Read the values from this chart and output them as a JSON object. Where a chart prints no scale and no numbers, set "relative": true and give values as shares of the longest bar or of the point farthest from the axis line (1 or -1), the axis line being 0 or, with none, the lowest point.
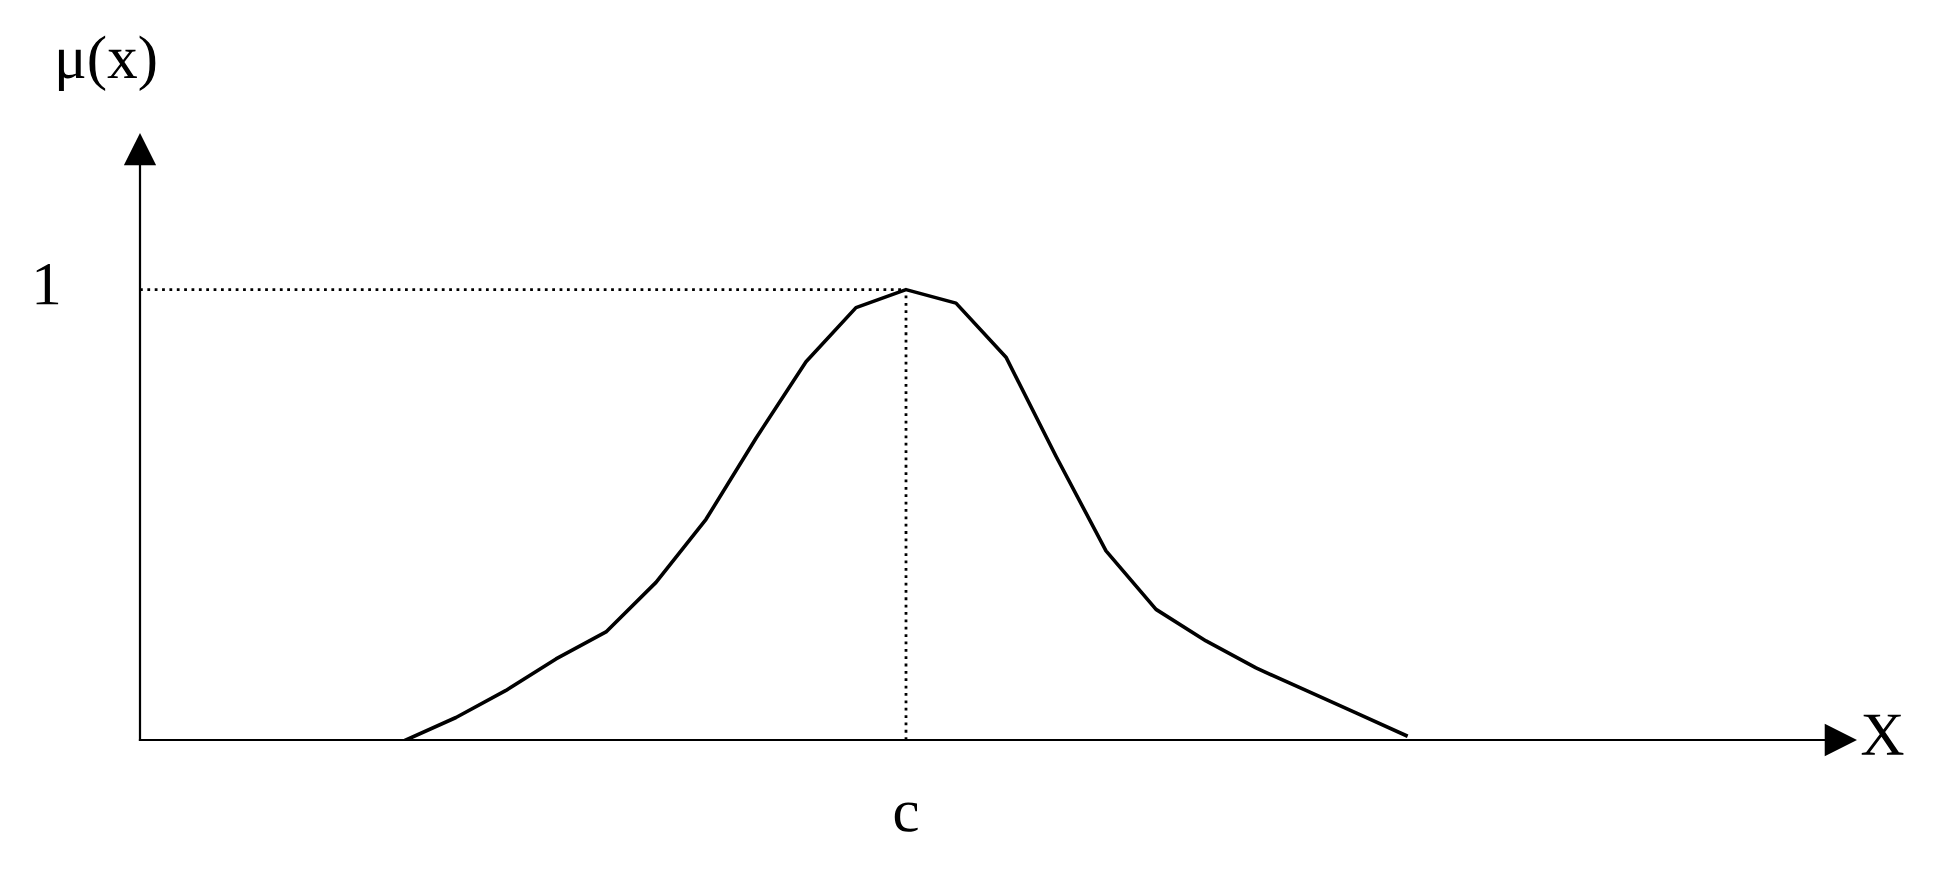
{
  "chart_data": {
    "type": "line",
    "relative": true,
    "annotations": [
      "X"
    ],
    "ylabel": "μ(x)",
    "line_style": "solid",
    "marker": "none",
    "categories": [
      null,
      null,
      null,
      null,
      null,
      null,
      null,
      null,
      null,
      null,
      null,
      null,
      null,
      null,
      null,
      null,
      null,
      null,
      null,
      null,
      null
    ],
    "series": [
      {
        "color": "#000000",
        "values": [
          0,
          0.05,
          0.11,
          0.18,
          0.24,
          0.35,
          0.49,
          0.67,
          0.84,
          0.96,
          1,
          0.97,
          0.85,
          0.63,
          0.42,
          0.29,
          0.22,
          0.16,
          0.11,
          0.06,
          0.01
        ]
      }
    ],
    "ref_lines": [
      {
        "axis": "y",
        "value": 1,
        "label": "1",
        "color": "#000000",
        "line_style": "dotted"
      },
      {
        "axis": "x",
        "label": "c",
        "color": "#000000",
        "line_style": "dotted"
      }
    ]
  }
}
